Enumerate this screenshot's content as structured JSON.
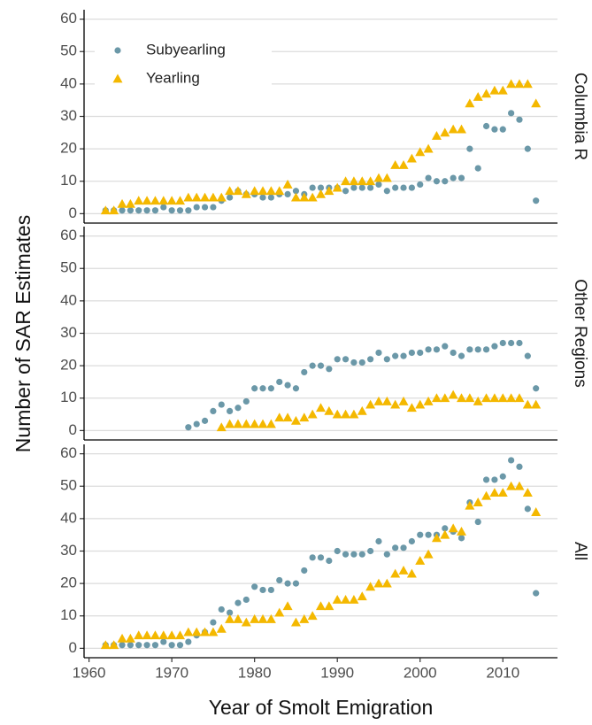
{
  "chart_data": [
    {
      "type": "scatter",
      "facet": "Columbia R",
      "legend": "upper left",
      "grid": "y",
      "xlim": [
        1959.4,
        2016.6
      ],
      "ylim": [
        -2.9,
        62.9
      ],
      "yticks": [
        0,
        10,
        20,
        30,
        40,
        50,
        60
      ],
      "x": [
        1962,
        1963,
        1964,
        1965,
        1966,
        1967,
        1968,
        1969,
        1970,
        1971,
        1972,
        1973,
        1974,
        1975,
        1976,
        1977,
        1978,
        1979,
        1980,
        1981,
        1982,
        1983,
        1984,
        1985,
        1986,
        1987,
        1988,
        1989,
        1990,
        1991,
        1992,
        1993,
        1994,
        1995,
        1996,
        1997,
        1998,
        1999,
        2000,
        2001,
        2002,
        2003,
        2004,
        2005,
        2006,
        2007,
        2008,
        2009,
        2010,
        2011,
        2012,
        2013,
        2014
      ],
      "series": [
        {
          "name": "Subyearling",
          "color": "#6b98a8",
          "marker": "circle",
          "values": [
            1,
            1,
            1,
            1,
            1,
            1,
            1,
            2,
            1,
            1,
            1,
            2,
            2,
            2,
            4,
            5,
            7,
            6,
            6,
            5,
            5,
            6,
            6,
            7,
            6,
            8,
            8,
            8,
            8,
            7,
            8,
            8,
            8,
            9,
            7,
            8,
            8,
            8,
            9,
            11,
            10,
            10,
            11,
            11,
            20,
            14,
            27,
            26,
            26,
            31,
            29,
            20,
            4
          ]
        },
        {
          "name": "Yearling",
          "color": "#f4b800",
          "marker": "triangle",
          "values": [
            1,
            1,
            3,
            3,
            4,
            4,
            4,
            4,
            4,
            4,
            5,
            5,
            5,
            5,
            5,
            7,
            7,
            6,
            7,
            7,
            7,
            7,
            9,
            5,
            5,
            5,
            6,
            7,
            8,
            10,
            10,
            10,
            10,
            11,
            11,
            15,
            15,
            17,
            19,
            20,
            24,
            25,
            26,
            26,
            34,
            36,
            37,
            38,
            38,
            40,
            40,
            40,
            34
          ]
        }
      ]
    },
    {
      "type": "scatter",
      "facet": "Other Regions",
      "ylabel": "Number of SAR Estimates",
      "grid": "y",
      "xlim": [
        1959.4,
        2016.6
      ],
      "ylim": [
        -2.9,
        62.9
      ],
      "yticks": [
        0,
        10,
        20,
        30,
        40,
        50,
        60
      ],
      "x": [
        1962,
        1963,
        1964,
        1965,
        1966,
        1967,
        1968,
        1969,
        1970,
        1971,
        1972,
        1973,
        1974,
        1975,
        1976,
        1977,
        1978,
        1979,
        1980,
        1981,
        1982,
        1983,
        1984,
        1985,
        1986,
        1987,
        1988,
        1989,
        1990,
        1991,
        1992,
        1993,
        1994,
        1995,
        1996,
        1997,
        1998,
        1999,
        2000,
        2001,
        2002,
        2003,
        2004,
        2005,
        2006,
        2007,
        2008,
        2009,
        2010,
        2011,
        2012,
        2013,
        2014
      ],
      "series": [
        {
          "name": "Subyearling",
          "color": "#6b98a8",
          "marker": "circle",
          "values": [
            null,
            null,
            null,
            null,
            null,
            null,
            null,
            null,
            null,
            null,
            1,
            2,
            3,
            6,
            8,
            6,
            7,
            9,
            13,
            13,
            13,
            15,
            14,
            13,
            18,
            20,
            20,
            19,
            22,
            22,
            21,
            21,
            22,
            24,
            22,
            23,
            23,
            24,
            24,
            25,
            25,
            26,
            24,
            23,
            25,
            25,
            25,
            26,
            27,
            27,
            27,
            23,
            13
          ]
        },
        {
          "name": "Yearling",
          "color": "#f4b800",
          "marker": "triangle",
          "values": [
            null,
            null,
            null,
            null,
            null,
            null,
            null,
            null,
            null,
            null,
            null,
            null,
            null,
            null,
            1,
            2,
            2,
            2,
            2,
            2,
            2,
            4,
            4,
            3,
            4,
            5,
            7,
            6,
            5,
            5,
            5,
            6,
            8,
            9,
            9,
            8,
            9,
            7,
            8,
            9,
            10,
            10,
            11,
            10,
            10,
            9,
            10,
            10,
            10,
            10,
            10,
            8,
            8
          ]
        }
      ]
    },
    {
      "type": "scatter",
      "facet": "All",
      "xlabel": "Year of Smolt Emigration",
      "grid": "y",
      "xlim": [
        1959.4,
        2016.6
      ],
      "ylim": [
        -2.9,
        62.9
      ],
      "yticks": [
        0,
        10,
        20,
        30,
        40,
        50,
        60
      ],
      "xticks": [
        1960,
        1970,
        1980,
        1990,
        2000,
        2010
      ],
      "x": [
        1962,
        1963,
        1964,
        1965,
        1966,
        1967,
        1968,
        1969,
        1970,
        1971,
        1972,
        1973,
        1974,
        1975,
        1976,
        1977,
        1978,
        1979,
        1980,
        1981,
        1982,
        1983,
        1984,
        1985,
        1986,
        1987,
        1988,
        1989,
        1990,
        1991,
        1992,
        1993,
        1994,
        1995,
        1996,
        1997,
        1998,
        1999,
        2000,
        2001,
        2002,
        2003,
        2004,
        2005,
        2006,
        2007,
        2008,
        2009,
        2010,
        2011,
        2012,
        2013,
        2014
      ],
      "series": [
        {
          "name": "Subyearling",
          "color": "#6b98a8",
          "marker": "circle",
          "values": [
            1,
            1,
            1,
            1,
            1,
            1,
            1,
            2,
            1,
            1,
            2,
            4,
            5,
            8,
            12,
            11,
            14,
            15,
            19,
            18,
            18,
            21,
            20,
            20,
            24,
            28,
            28,
            27,
            30,
            29,
            29,
            29,
            30,
            33,
            29,
            31,
            31,
            33,
            35,
            35,
            35,
            37,
            36,
            34,
            45,
            39,
            52,
            52,
            53,
            58,
            56,
            43,
            17
          ]
        },
        {
          "name": "Yearling",
          "color": "#f4b800",
          "marker": "triangle",
          "values": [
            1,
            1,
            3,
            3,
            4,
            4,
            4,
            4,
            4,
            4,
            5,
            5,
            5,
            5,
            6,
            9,
            9,
            8,
            9,
            9,
            9,
            11,
            13,
            8,
            9,
            10,
            13,
            13,
            15,
            15,
            15,
            16,
            19,
            20,
            20,
            23,
            24,
            23,
            27,
            29,
            34,
            35,
            37,
            36,
            44,
            45,
            47,
            48,
            48,
            50,
            50,
            48,
            42
          ]
        }
      ]
    }
  ]
}
